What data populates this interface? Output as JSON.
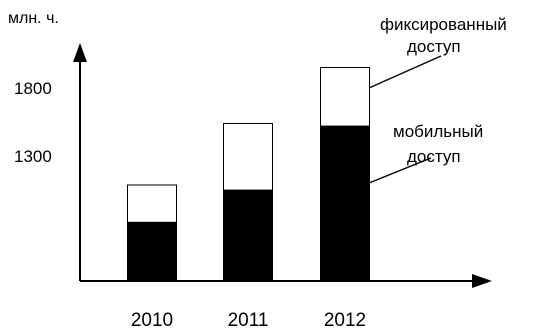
{
  "chart_data": {
    "type": "bar",
    "stacked": true,
    "title": "",
    "ylabel": "млн. ч.",
    "xlabel": "",
    "categories": [
      "2010",
      "2011",
      "2012"
    ],
    "yticks": [
      "1800",
      "1300"
    ],
    "ytick_values": [
      1800,
      1300
    ],
    "ylim": [
      0,
      2530
    ],
    "series": [
      {
        "name": "мобильный доступ",
        "values": [
          683,
          1058,
          1804
        ],
        "color": "#000000"
      },
      {
        "name": "фиксированный доступ",
        "values": [
          436,
          778,
          684
        ],
        "color": "#ffffff"
      }
    ],
    "annotations": {
      "fixed_line1": "фиксированный",
      "fixed_line2": "доступ",
      "mobile_line1": "мобильный",
      "mobile_line2": "доступ"
    },
    "grid": false,
    "legend": "callouts-right"
  }
}
